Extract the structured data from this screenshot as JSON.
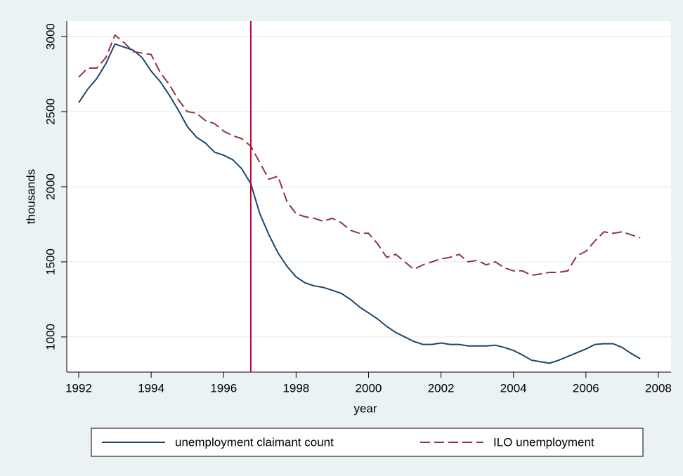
{
  "chart_data": {
    "type": "line",
    "x_label": "year",
    "y_label": "thousands",
    "x": [
      1992,
      1992.25,
      1992.5,
      1992.75,
      1993,
      1993.25,
      1993.5,
      1993.75,
      1994,
      1994.25,
      1994.5,
      1994.75,
      1995,
      1995.25,
      1995.5,
      1995.75,
      1996,
      1996.25,
      1996.5,
      1996.75,
      1997,
      1997.25,
      1997.5,
      1997.75,
      1998,
      1998.25,
      1998.5,
      1998.75,
      1999,
      1999.25,
      1999.5,
      1999.75,
      2000,
      2000.25,
      2000.5,
      2000.75,
      2001,
      2001.25,
      2001.5,
      2001.75,
      2002,
      2002.25,
      2002.5,
      2002.75,
      2003,
      2003.25,
      2003.5,
      2003.75,
      2004,
      2004.25,
      2004.5,
      2004.75,
      2005,
      2005.25,
      2005.5,
      2005.75,
      2006,
      2006.25,
      2006.5,
      2006.75,
      2007,
      2007.25,
      2007.5
    ],
    "series": [
      {
        "name": "unemployment claimant count",
        "color": "#1a476f",
        "dash": false,
        "values": [
          2560,
          2650,
          2720,
          2820,
          2950,
          2930,
          2910,
          2860,
          2770,
          2700,
          2610,
          2510,
          2400,
          2330,
          2290,
          2230,
          2210,
          2180,
          2120,
          2020,
          1820,
          1680,
          1560,
          1470,
          1400,
          1360,
          1340,
          1330,
          1310,
          1290,
          1250,
          1200,
          1160,
          1120,
          1070,
          1030,
          1000,
          970,
          950,
          950,
          960,
          950,
          950,
          940,
          940,
          940,
          945,
          930,
          910,
          880,
          845,
          835,
          825,
          845,
          870,
          895,
          920,
          950,
          955,
          955,
          930,
          890,
          855
        ]
      },
      {
        "name": "ILO unemployment",
        "color": "#90353b",
        "dash": true,
        "values": [
          2730,
          2790,
          2790,
          2860,
          3010,
          2960,
          2900,
          2890,
          2880,
          2760,
          2680,
          2580,
          2500,
          2490,
          2440,
          2420,
          2370,
          2340,
          2320,
          2270,
          2160,
          2050,
          2070,
          1900,
          1820,
          1800,
          1790,
          1770,
          1790,
          1760,
          1710,
          1690,
          1690,
          1620,
          1530,
          1550,
          1500,
          1450,
          1480,
          1500,
          1520,
          1530,
          1550,
          1500,
          1510,
          1480,
          1500,
          1460,
          1440,
          1440,
          1410,
          1420,
          1430,
          1430,
          1440,
          1540,
          1570,
          1640,
          1700,
          1690,
          1700,
          1680,
          1660
        ]
      }
    ],
    "vline": 1996.75,
    "vline_color": "#c10534",
    "xlim": [
      1991.67,
      2008.35
    ],
    "xticks": [
      1992,
      1994,
      1996,
      1998,
      2000,
      2002,
      2004,
      2006,
      2008
    ],
    "ylim": [
      766,
      3103
    ],
    "yticks": [
      1000,
      1500,
      2000,
      2500,
      3000
    ],
    "grid": true,
    "legend": "bottom"
  }
}
